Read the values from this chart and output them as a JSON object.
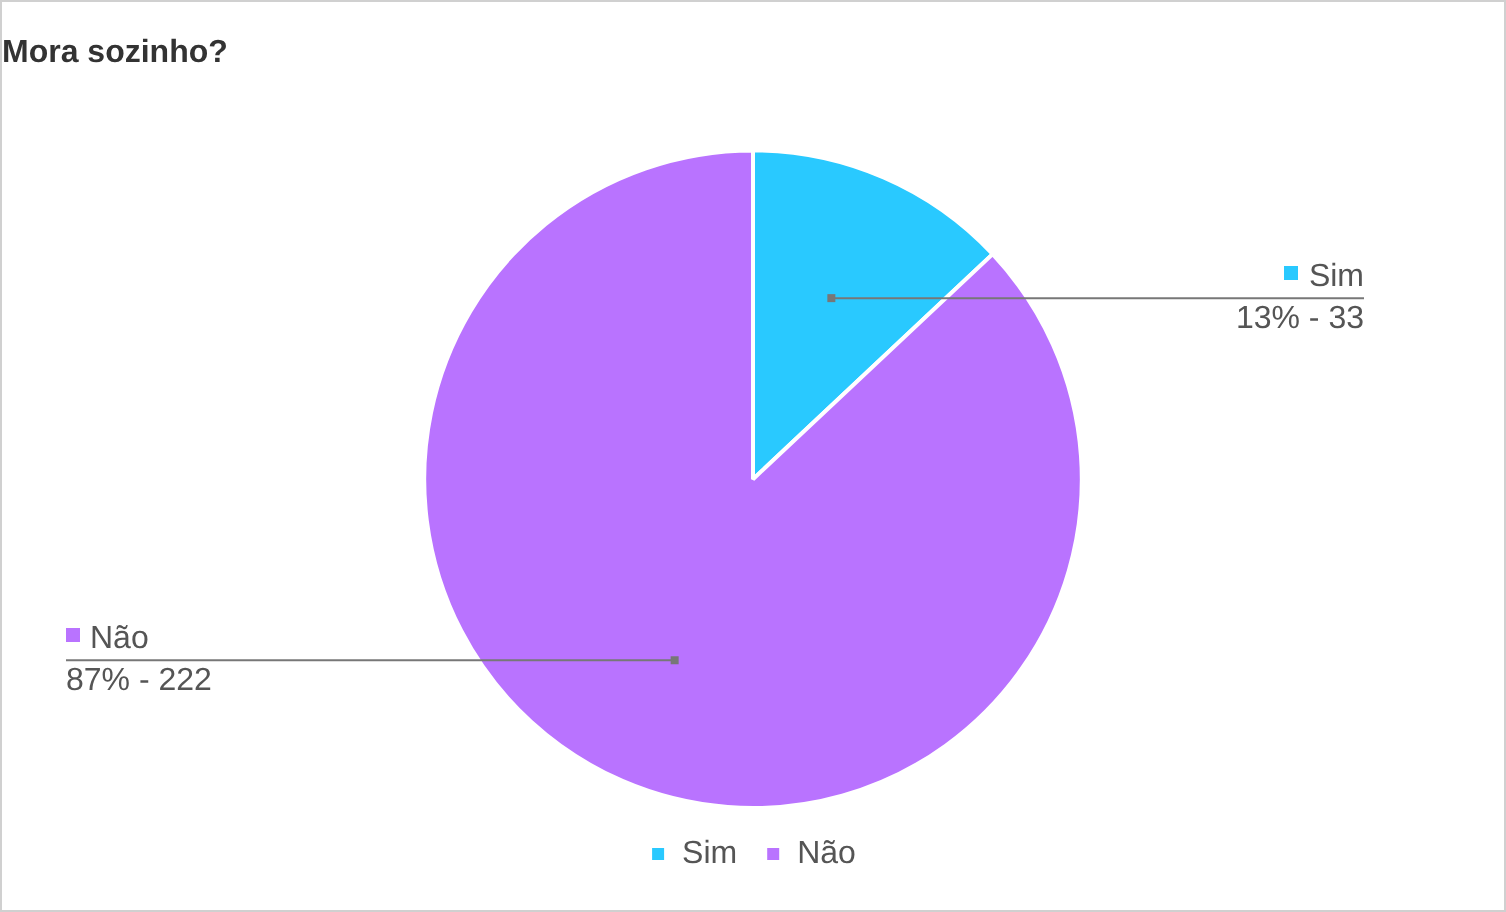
{
  "chart_data": {
    "type": "pie",
    "title": "Mora sozinho?",
    "categories": [
      "Sim",
      "Não"
    ],
    "values": [
      13,
      87
    ],
    "colors": [
      "#29c9ff",
      "#b973ff"
    ],
    "annotations": [
      {
        "text": "13% - 33",
        "x": "Sim"
      },
      {
        "text": "87% - 222",
        "x": "Não"
      }
    ],
    "legend": "bottom"
  }
}
